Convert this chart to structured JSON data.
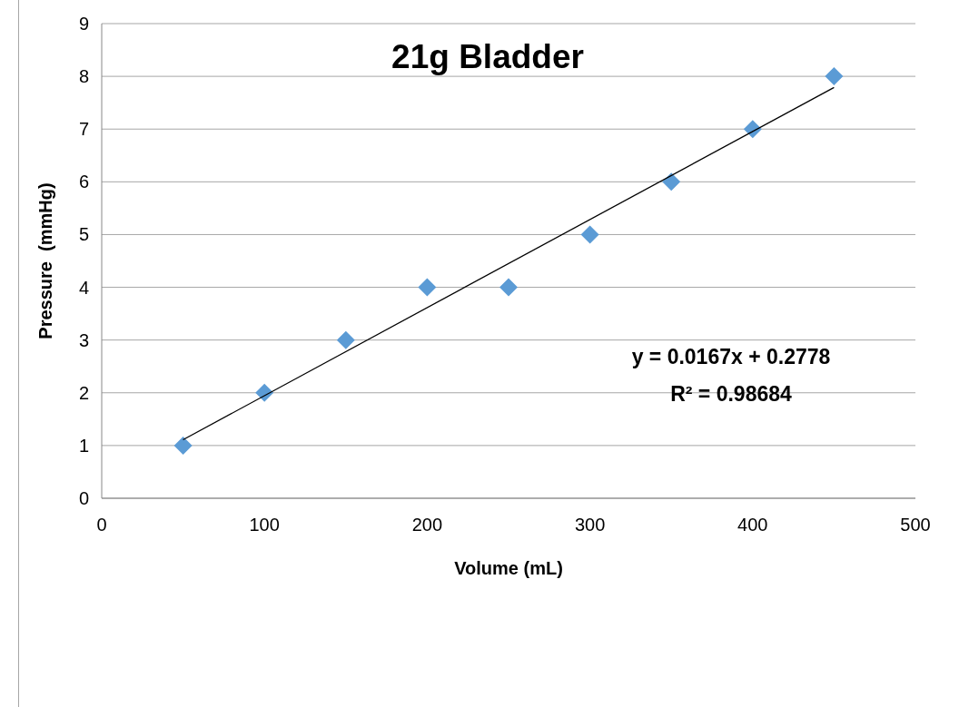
{
  "chart_data": {
    "type": "scatter",
    "title": "21g Bladder",
    "xlabel": "Volume (mL)",
    "ylabel": "Pressure  (mmHg)",
    "xlim": [
      0,
      500
    ],
    "xticks": [
      0,
      100,
      200,
      300,
      400,
      500
    ],
    "ylim": [
      0,
      9
    ],
    "yticks": [
      0,
      1,
      2,
      3,
      4,
      5,
      6,
      7,
      8,
      9
    ],
    "grid": "y",
    "marker": "diamond",
    "series": [
      {
        "color": "#5b9bd5",
        "x": [
          50,
          100,
          150,
          200,
          250,
          300,
          350,
          400,
          450
        ],
        "values": [
          1,
          2,
          3,
          4,
          4,
          5,
          6,
          7,
          8
        ]
      },
      {
        "type": "line",
        "color": "#000000",
        "marker": "none",
        "x": [
          50,
          450
        ],
        "values": [
          1.11,
          7.79
        ]
      }
    ],
    "annotations": [
      "y = 0.0167x + 0.2778",
      "R² = 0.98684"
    ]
  }
}
